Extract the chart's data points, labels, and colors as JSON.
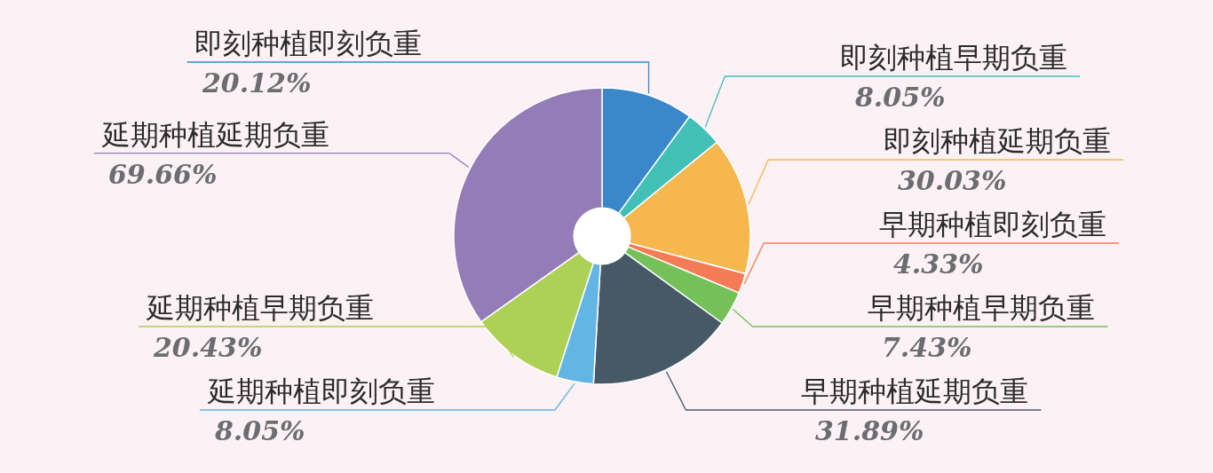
{
  "chart_data": {
    "type": "donut",
    "categories": [
      "即刻种植即刻负重",
      "即刻种植早期负重",
      "即刻种植延期负重",
      "早期种植即刻负重",
      "早期种植早期负重",
      "早期种植延期负重",
      "延期种植即刻负重",
      "延期种植早期负重",
      "延期种植延期负重"
    ],
    "values": [
      20.12,
      8.05,
      30.03,
      4.33,
      7.43,
      31.89,
      8.05,
      20.43,
      69.66
    ],
    "value_labels": [
      "20.12%",
      "8.05%",
      "30.03%",
      "4.33%",
      "7.43%",
      "31.89%",
      "8.05%",
      "20.43%",
      "69.66%"
    ],
    "colors": [
      "#3a88c9",
      "#42bfb7",
      "#f5b74e",
      "#f47b56",
      "#74c15a",
      "#475966",
      "#63b5e5",
      "#acd156",
      "#947cb9"
    ]
  }
}
